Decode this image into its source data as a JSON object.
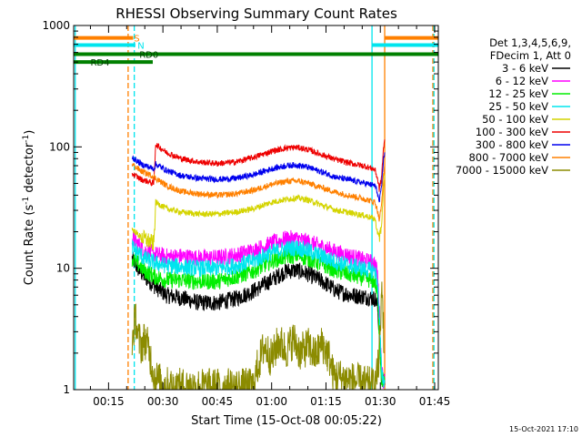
{
  "chart_data": {
    "type": "line",
    "title": "RHESSI Observing Summary Count Rates",
    "xlabel": "Start Time (15-Oct-08 00:05:22)",
    "ylabel_main": "Count Rate (s",
    "ylabel_sup1": "-1",
    "ylabel_mid": " detector",
    "ylabel_sup2": "-1",
    "ylabel_end": ")",
    "y_scale": "log",
    "ylim": [
      1,
      1000
    ],
    "xlim_minutes": [
      5.37,
      106.0
    ],
    "x_ticks": [
      {
        "label": "00:15",
        "minutes": 15
      },
      {
        "label": "00:30",
        "minutes": 30
      },
      {
        "label": "00:45",
        "minutes": 45
      },
      {
        "label": "01:00",
        "minutes": 60
      },
      {
        "label": "01:15",
        "minutes": 75
      },
      {
        "label": "01:30",
        "minutes": 90
      },
      {
        "label": "01:45",
        "minutes": 105
      }
    ],
    "y_ticks": [
      {
        "label": "1",
        "value": 1
      },
      {
        "label": "10",
        "value": 10
      },
      {
        "label": "100",
        "value": 100
      },
      {
        "label": "1000",
        "value": 1000
      }
    ],
    "legend_header": [
      "Det 1,3,4,5,6,9,",
      "FDecim 1, Att 0"
    ],
    "legend_placement": "right",
    "series": [
      {
        "name": "3 - 6 keV",
        "color": "#000000",
        "x": [
          21.5,
          23,
          25,
          28,
          31,
          35,
          40,
          45,
          50,
          55,
          60,
          64,
          67,
          70,
          74,
          78,
          82,
          86,
          88.5,
          89.2,
          89.7,
          90.3,
          90.8,
          91.2
        ],
        "y": [
          12,
          10,
          8.5,
          7,
          6,
          5.7,
          5.2,
          5.2,
          5.6,
          6.5,
          8,
          9.5,
          9.6,
          9,
          7.8,
          6.5,
          6,
          5.8,
          5.6,
          5,
          3,
          1.2,
          1.2,
          1.2
        ]
      },
      {
        "name": "6 - 12 keV",
        "color": "#ff00ff",
        "x": [
          21.5,
          23,
          25,
          28,
          31,
          35,
          40,
          45,
          50,
          55,
          60,
          64,
          67,
          70,
          74,
          78,
          82,
          86,
          88.5,
          89.2,
          89.7,
          90.3,
          90.8,
          91.2
        ],
        "y": [
          18,
          16,
          14,
          13,
          12.5,
          12.5,
          12.2,
          12.2,
          12.8,
          14,
          16,
          17.5,
          17.5,
          16.5,
          15,
          13.5,
          12.5,
          11.5,
          11,
          9,
          5,
          1.5,
          1.2,
          1.2
        ]
      },
      {
        "name": "12 - 25 keV",
        "color": "#00ee00",
        "x": [
          21.5,
          23,
          25,
          28,
          31,
          35,
          40,
          45,
          50,
          55,
          60,
          64,
          67,
          70,
          74,
          78,
          82,
          86,
          88.5,
          89.2,
          89.7,
          90.3,
          90.8,
          91.2
        ],
        "y": [
          12,
          11,
          9.5,
          8.5,
          8,
          8,
          7.8,
          7.8,
          8.5,
          9.5,
          11.5,
          12.5,
          12.8,
          12,
          10.8,
          9.5,
          8.8,
          8.2,
          7.8,
          6,
          3,
          1.2,
          1.2,
          1.2
        ]
      },
      {
        "name": "25 - 50 keV",
        "color": "#00e5ee",
        "x": [
          21.5,
          23,
          25,
          28,
          31,
          35,
          40,
          45,
          50,
          55,
          60,
          64,
          67,
          70,
          74,
          78,
          82,
          86,
          88.5,
          89.2,
          89.7,
          90.3,
          90.8,
          91.2
        ],
        "y": [
          15,
          13.5,
          12,
          11,
          10.5,
          10.3,
          10,
          10,
          10.5,
          11.5,
          13.5,
          14.5,
          14.8,
          14,
          12.5,
          11.2,
          10.5,
          9.8,
          9.5,
          8,
          4,
          1.5,
          1.2,
          1.2
        ]
      },
      {
        "name": "50 - 100 keV",
        "color": "#d4d400",
        "x": [
          21.5,
          24,
          27.5,
          28,
          31,
          35,
          40,
          45,
          50,
          55,
          60,
          64,
          67,
          70,
          74,
          78,
          82,
          86,
          88.5,
          89.2,
          89.7,
          90.3,
          90.8,
          91.2
        ],
        "y": [
          21,
          18,
          16,
          35,
          31,
          29,
          28,
          28,
          29,
          31,
          35,
          37,
          38,
          36.5,
          33,
          30,
          28.5,
          27,
          25.5,
          20,
          18,
          22,
          40,
          60
        ]
      },
      {
        "name": "100 - 300 keV",
        "color": "#ee0000",
        "x": [
          21.5,
          24,
          27.5,
          28,
          31,
          35,
          40,
          45,
          50,
          55,
          60,
          64,
          67,
          70,
          74,
          78,
          82,
          86,
          88.5,
          89.2,
          89.7,
          90.3,
          90.8,
          91.2
        ],
        "y": [
          60,
          54,
          50,
          105,
          90,
          80,
          75,
          73,
          75,
          82,
          92,
          98,
          99,
          95,
          86,
          78,
          73,
          69,
          65,
          55,
          45,
          55,
          90,
          115
        ]
      },
      {
        "name": "300 - 800 keV",
        "color": "#0000ee",
        "x": [
          21.5,
          24,
          27.5,
          28,
          31,
          35,
          40,
          45,
          50,
          55,
          60,
          64,
          67,
          70,
          74,
          78,
          82,
          86,
          88.5,
          89.2,
          89.7,
          90.3,
          90.8,
          91.2
        ],
        "y": [
          82,
          72,
          66,
          72,
          64,
          58,
          55,
          54,
          55,
          59,
          66,
          70,
          71,
          68,
          62,
          56,
          53,
          50,
          48,
          42,
          35,
          45,
          75,
          90
        ]
      },
      {
        "name": "800 - 7000 keV",
        "color": "#ff8000",
        "x": [
          21.5,
          24,
          27.5,
          28,
          31,
          35,
          40,
          45,
          50,
          55,
          60,
          64,
          67,
          70,
          74,
          78,
          82,
          86,
          88.5,
          89.2,
          89.7,
          90.3,
          90.8,
          91.2
        ],
        "y": [
          72,
          63,
          57,
          55,
          48,
          43,
          41,
          40,
          41,
          44,
          49,
          52,
          52.5,
          50.5,
          46,
          42,
          39.5,
          37,
          35,
          30,
          25,
          32,
          55,
          70
        ]
      },
      {
        "name": "7000 - 15000 keV",
        "color": "#8b8b00",
        "x": [
          21.5,
          22,
          22.5,
          23,
          24,
          25,
          26,
          27,
          27.5,
          28.5,
          30,
          33,
          45,
          55,
          56,
          58,
          60,
          62,
          64,
          66,
          68,
          70,
          72,
          74,
          76,
          77,
          88.5,
          89.5,
          90,
          90.5,
          91
        ],
        "y": [
          2.5,
          3.2,
          4,
          2.8,
          2.3,
          2.6,
          2.2,
          1.6,
          1.3,
          1.2,
          1.1,
          1.05,
          1.05,
          1.05,
          1.5,
          2.3,
          1.8,
          2.5,
          2.1,
          2.6,
          2.0,
          2.3,
          1.9,
          2.4,
          1.8,
          1.3,
          1.05,
          1.6,
          3,
          8,
          2
        ]
      }
    ],
    "overlays": {
      "segments": [
        {
          "label": "S",
          "color": "#ff8000",
          "y_value": 790,
          "ranges": [
            [
              5.37,
              21.8
            ],
            [
              91.2,
              106
            ]
          ],
          "label_at": 22.0
        },
        {
          "label": "N",
          "color": "#00e5ee",
          "y_value": 690,
          "ranges": [
            [
              5.37,
              22.4
            ],
            [
              87.7,
              106
            ]
          ],
          "label_at": 23.0
        },
        {
          "label": "RD0",
          "color": "#008000",
          "y_value": 580,
          "ranges": [
            [
              5.37,
              106
            ]
          ],
          "label_at": 23.5
        },
        {
          "label": "RD4",
          "color": "#008000",
          "y_value": 500,
          "ranges": [
            [
              5.37,
              27.2
            ]
          ],
          "label_at": 10.0
        }
      ],
      "vlines": [
        {
          "minutes": 5.8,
          "color": "#00e5ee",
          "style": "solid"
        },
        {
          "minutes": 20.4,
          "color": "#ff8000",
          "style": "dashed"
        },
        {
          "minutes": 22.1,
          "color": "#00e5ee",
          "style": "dashed"
        },
        {
          "minutes": 87.7,
          "color": "#00e5ee",
          "style": "solid"
        },
        {
          "minutes": 91.2,
          "color": "#ff8000",
          "style": "solid"
        },
        {
          "minutes": 104.5,
          "color": "#ff8000",
          "style": "dashed"
        },
        {
          "minutes": 104.8,
          "color": "#00e5ee",
          "style": "dashed"
        }
      ]
    },
    "timestamp": "15-Oct-2021 17:10"
  }
}
